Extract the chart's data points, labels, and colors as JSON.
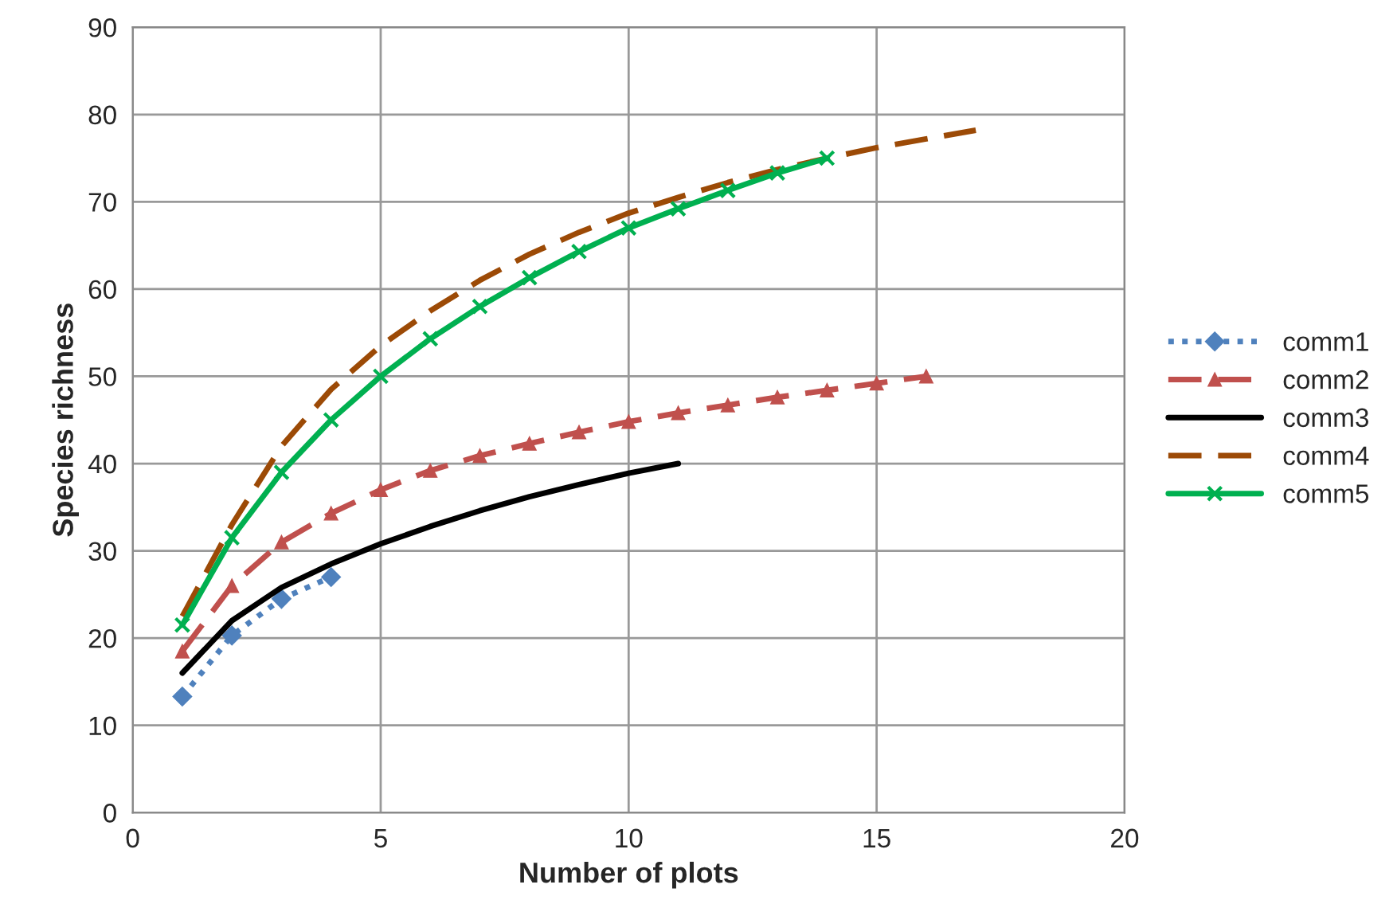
{
  "chart_data": {
    "type": "line",
    "xlabel": "Number of plots",
    "ylabel": "Species richness",
    "xlim": [
      0,
      20
    ],
    "xticks": [
      0,
      5,
      10,
      15,
      20
    ],
    "ylim": [
      0,
      90
    ],
    "yticks": [
      0,
      10,
      20,
      30,
      40,
      50,
      60,
      70,
      80,
      90
    ],
    "grid": true,
    "legend": "right",
    "series": [
      {
        "name": "comm1",
        "color": "#4f81bd",
        "marker": "diamond",
        "line_style": "dotted",
        "x": [
          1,
          2,
          3,
          4
        ],
        "values": [
          13.3,
          20.3,
          24.5,
          27
        ]
      },
      {
        "name": "comm2",
        "color": "#c0504d",
        "marker": "triangle",
        "line_style": "dashed",
        "x": [
          1,
          2,
          3,
          4,
          5,
          6,
          7,
          8,
          9,
          10,
          11,
          12,
          13,
          14,
          15,
          16
        ],
        "values": [
          18.5,
          26,
          31,
          34.3,
          37,
          39.2,
          40.9,
          42.3,
          43.6,
          44.8,
          45.8,
          46.7,
          47.6,
          48.4,
          49.2,
          50
        ]
      },
      {
        "name": "comm3",
        "color": "#000000",
        "marker": "none",
        "line_style": "solid",
        "x": [
          1,
          2,
          3,
          4,
          5,
          6,
          7,
          8,
          9,
          10,
          11
        ],
        "values": [
          16,
          22,
          25.8,
          28.5,
          30.8,
          32.8,
          34.6,
          36.2,
          37.6,
          38.9,
          40
        ]
      },
      {
        "name": "comm4",
        "color": "#9c4a06",
        "marker": "none",
        "line_style": "dashed",
        "x": [
          1,
          2,
          3,
          4,
          5,
          6,
          7,
          8,
          9,
          10,
          11,
          12,
          13,
          14,
          15,
          16,
          17
        ],
        "values": [
          22.5,
          33,
          42,
          48.5,
          53.5,
          57.5,
          61,
          64,
          66.5,
          68.7,
          70.5,
          72.2,
          73.7,
          75,
          76.2,
          77.2,
          78.2
        ]
      },
      {
        "name": "comm5",
        "color": "#00b050",
        "marker": "cross",
        "line_style": "solid",
        "x": [
          1,
          2,
          3,
          4,
          5,
          6,
          7,
          8,
          9,
          10,
          11,
          12,
          13,
          14
        ],
        "values": [
          21.5,
          31.5,
          39,
          45,
          50,
          54.3,
          58,
          61.3,
          64.3,
          67,
          69.2,
          71.3,
          73.3,
          75
        ]
      }
    ]
  }
}
